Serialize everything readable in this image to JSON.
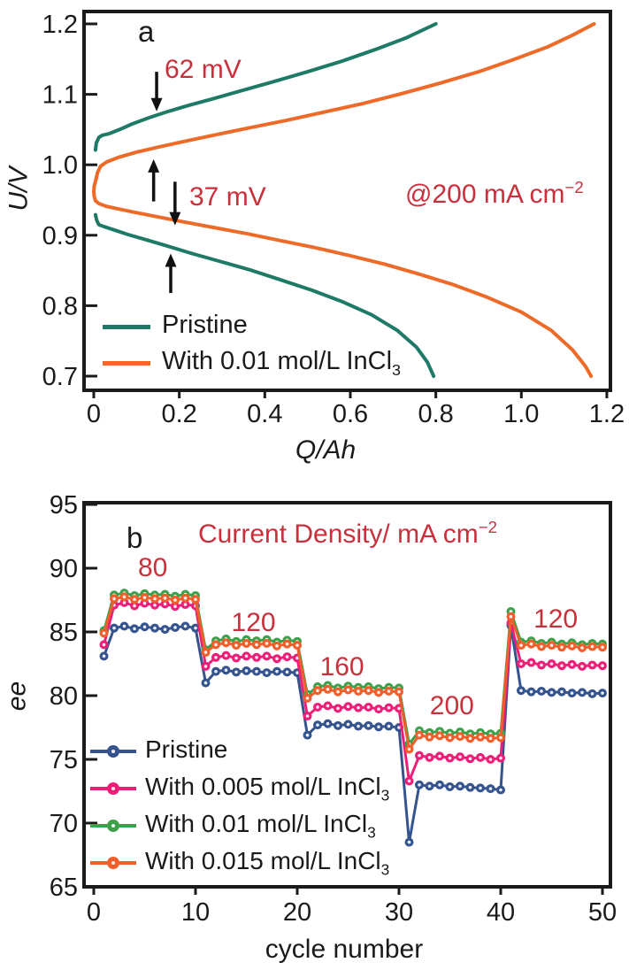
{
  "colors": {
    "axis": "#1a1a1a",
    "annotation_red": "#c9303c",
    "arrow_black": "#111111"
  },
  "chart_data": [
    {
      "panel": "a",
      "panel_label": "a",
      "type": "line",
      "xlabel": "Q/Ah",
      "ylabel": "U/V",
      "xlim": [
        0,
        1.2
      ],
      "ylim": [
        0.7,
        1.2
      ],
      "x_ticks": [
        "0",
        "0.2",
        "0.4",
        "0.6",
        "0.8",
        "1.0",
        "1.2"
      ],
      "y_ticks": [
        "0.7",
        "0.8",
        "0.9",
        "1.0",
        "1.1",
        "1.2"
      ],
      "grid": false,
      "legend_position": "lower-left-inside",
      "condition_main": "@200 mA cm",
      "condition_sup": "−2",
      "overpotentials": [
        {
          "label": "62 mV",
          "series": "Pristine"
        },
        {
          "label": "37 mV",
          "series": "With 0.01 mol/L InCl3"
        }
      ],
      "arrows": [
        {
          "x": 0.147,
          "from": 1.132,
          "to": 1.076
        },
        {
          "x": 0.14,
          "from": 0.948,
          "to": 1.008
        },
        {
          "x": 0.19,
          "from": 0.976,
          "to": 0.914
        },
        {
          "x": 0.18,
          "from": 0.818,
          "to": 0.874
        }
      ],
      "series": [
        {
          "name": "Pristine",
          "name_main": "Pristine",
          "name_sub": "",
          "color": "#1e7a67",
          "charge": [
            [
              0.004,
              1.021
            ],
            [
              0.006,
              1.031
            ],
            [
              0.012,
              1.039
            ],
            [
              0.02,
              1.042
            ],
            [
              0.035,
              1.044
            ],
            [
              0.06,
              1.05
            ],
            [
              0.09,
              1.058
            ],
            [
              0.13,
              1.067
            ],
            [
              0.17,
              1.075
            ],
            [
              0.22,
              1.084
            ],
            [
              0.28,
              1.094
            ],
            [
              0.35,
              1.106
            ],
            [
              0.42,
              1.118
            ],
            [
              0.5,
              1.132
            ],
            [
              0.58,
              1.147
            ],
            [
              0.66,
              1.164
            ],
            [
              0.73,
              1.18
            ],
            [
              0.8,
              1.2
            ]
          ],
          "discharge": [
            [
              0.004,
              0.929
            ],
            [
              0.007,
              0.921
            ],
            [
              0.012,
              0.915
            ],
            [
              0.025,
              0.912
            ],
            [
              0.05,
              0.907
            ],
            [
              0.08,
              0.901
            ],
            [
              0.12,
              0.894
            ],
            [
              0.17,
              0.885
            ],
            [
              0.23,
              0.874
            ],
            [
              0.3,
              0.862
            ],
            [
              0.37,
              0.85
            ],
            [
              0.44,
              0.836
            ],
            [
              0.51,
              0.822
            ],
            [
              0.58,
              0.806
            ],
            [
              0.65,
              0.787
            ],
            [
              0.71,
              0.765
            ],
            [
              0.755,
              0.741
            ],
            [
              0.78,
              0.72
            ],
            [
              0.795,
              0.7
            ]
          ]
        },
        {
          "name": "With 0.01 mol/L InCl3",
          "name_main": "With 0.01 mol/L InCl",
          "name_sub": "3",
          "color": "#ee6a28",
          "charge": [
            [
              0.004,
              0.976
            ],
            [
              0.009,
              0.989
            ],
            [
              0.016,
              0.998
            ],
            [
              0.03,
              1.004
            ],
            [
              0.06,
              1.011
            ],
            [
              0.1,
              1.018
            ],
            [
              0.15,
              1.025
            ],
            [
              0.21,
              1.033
            ],
            [
              0.28,
              1.042
            ],
            [
              0.36,
              1.052
            ],
            [
              0.45,
              1.063
            ],
            [
              0.54,
              1.075
            ],
            [
              0.63,
              1.087
            ],
            [
              0.72,
              1.101
            ],
            [
              0.81,
              1.116
            ],
            [
              0.9,
              1.132
            ],
            [
              0.98,
              1.149
            ],
            [
              1.06,
              1.167
            ],
            [
              1.12,
              1.184
            ],
            [
              1.17,
              1.2
            ]
          ],
          "nose": [
            [
              0.001,
              0.97
            ],
            [
              0.0,
              0.962
            ],
            [
              0.001,
              0.955
            ]
          ],
          "discharge": [
            [
              0.004,
              0.949
            ],
            [
              0.012,
              0.945
            ],
            [
              0.03,
              0.941
            ],
            [
              0.06,
              0.937
            ],
            [
              0.1,
              0.932
            ],
            [
              0.15,
              0.926
            ],
            [
              0.21,
              0.919
            ],
            [
              0.28,
              0.911
            ],
            [
              0.36,
              0.902
            ],
            [
              0.44,
              0.892
            ],
            [
              0.52,
              0.882
            ],
            [
              0.6,
              0.871
            ],
            [
              0.68,
              0.859
            ],
            [
              0.76,
              0.845
            ],
            [
              0.84,
              0.83
            ],
            [
              0.92,
              0.812
            ],
            [
              1.0,
              0.791
            ],
            [
              1.07,
              0.765
            ],
            [
              1.12,
              0.737
            ],
            [
              1.15,
              0.714
            ],
            [
              1.163,
              0.7
            ]
          ]
        }
      ]
    },
    {
      "panel": "b",
      "panel_label": "b",
      "type": "line",
      "title_main": "Current Density/ mA cm",
      "title_sup": "−2",
      "xlabel": "cycle number",
      "ylabel": "ee",
      "xlim": [
        0,
        50
      ],
      "ylim": [
        65,
        95
      ],
      "x_ticks": [
        "0",
        "10",
        "20",
        "30",
        "40",
        "50"
      ],
      "y_ticks": [
        "65",
        "70",
        "75",
        "80",
        "85",
        "90",
        "95"
      ],
      "grid": false,
      "legend_position": "lower-left-inside",
      "segment_labels": [
        {
          "text": "80",
          "x": 5.8,
          "y": 90.0
        },
        {
          "text": "120",
          "x": 15.7,
          "y": 85.7
        },
        {
          "text": "160",
          "x": 24.4,
          "y": 82.2
        },
        {
          "text": "200",
          "x": 35.2,
          "y": 79.2
        },
        {
          "text": "120",
          "x": 45.4,
          "y": 86.0
        }
      ],
      "x": [
        1,
        2,
        3,
        4,
        5,
        6,
        7,
        8,
        9,
        10,
        11,
        12,
        13,
        14,
        15,
        16,
        17,
        18,
        19,
        20,
        21,
        22,
        23,
        24,
        25,
        26,
        27,
        28,
        29,
        30,
        31,
        32,
        33,
        34,
        35,
        36,
        37,
        38,
        39,
        40,
        41,
        42,
        43,
        44,
        45,
        46,
        47,
        48,
        49,
        50
      ],
      "series": [
        {
          "name": "Pristine",
          "name_main": "Pristine",
          "name_sub": "",
          "color": "#35548e",
          "values": [
            83.1,
            85.3,
            85.45,
            85.25,
            85.4,
            85.3,
            85.2,
            85.35,
            85.45,
            85.3,
            81.0,
            81.9,
            82.0,
            81.85,
            81.95,
            81.9,
            81.8,
            81.9,
            81.85,
            81.8,
            76.9,
            77.7,
            77.8,
            77.65,
            77.75,
            77.6,
            77.65,
            77.55,
            77.6,
            77.5,
            68.5,
            73.0,
            72.9,
            73.0,
            72.85,
            72.9,
            72.8,
            72.75,
            72.7,
            72.6,
            85.5,
            80.4,
            80.3,
            80.35,
            80.25,
            80.3,
            80.2,
            80.25,
            80.15,
            80.2
          ]
        },
        {
          "name": "With 0.005 mol/L InCl3",
          "name_main": "With 0.005 mol/L InCl",
          "name_sub": "3",
          "color": "#ed1e78",
          "values": [
            84.0,
            87.1,
            87.3,
            87.05,
            87.25,
            87.1,
            87.2,
            87.0,
            87.15,
            87.05,
            82.3,
            83.0,
            83.15,
            82.95,
            83.1,
            83.0,
            83.1,
            82.9,
            83.05,
            82.95,
            78.4,
            79.1,
            79.2,
            79.0,
            79.15,
            79.05,
            79.1,
            78.95,
            79.05,
            79.0,
            73.3,
            75.3,
            75.15,
            75.25,
            75.1,
            75.2,
            75.05,
            75.15,
            75.0,
            75.1,
            85.7,
            82.5,
            82.6,
            82.4,
            82.5,
            82.35,
            82.45,
            82.3,
            82.4,
            82.35
          ]
        },
        {
          "name": "With 0.01 mol/L InCl3",
          "name_main": "With 0.01 mol/L InCl",
          "name_sub": "3",
          "color": "#3da04a",
          "values": [
            85.1,
            87.9,
            88.05,
            87.85,
            88.0,
            87.9,
            87.95,
            87.8,
            87.95,
            87.85,
            83.6,
            84.3,
            84.45,
            84.25,
            84.4,
            84.3,
            84.4,
            84.2,
            84.35,
            84.25,
            80.1,
            80.7,
            80.8,
            80.6,
            80.75,
            80.65,
            80.7,
            80.55,
            80.65,
            80.6,
            76.2,
            77.25,
            77.1,
            77.2,
            77.05,
            77.15,
            77.0,
            77.1,
            77.0,
            77.05,
            86.6,
            84.2,
            84.3,
            84.1,
            84.2,
            84.05,
            84.15,
            84.0,
            84.1,
            84.05
          ]
        },
        {
          "name": "With 0.015 mol/L InCl3",
          "name_main": "With 0.015 mol/L InCl",
          "name_sub": "3",
          "color": "#ef5e2b",
          "values": [
            84.9,
            87.6,
            87.75,
            87.55,
            87.7,
            87.6,
            87.65,
            87.5,
            87.65,
            87.55,
            83.4,
            84.0,
            84.15,
            83.95,
            84.1,
            84.0,
            84.1,
            83.9,
            84.05,
            83.95,
            79.8,
            80.4,
            80.5,
            80.3,
            80.45,
            80.35,
            80.4,
            80.25,
            80.35,
            80.3,
            75.8,
            76.9,
            76.75,
            76.85,
            76.7,
            76.8,
            76.65,
            76.75,
            76.65,
            76.7,
            86.2,
            83.95,
            84.05,
            83.85,
            83.95,
            83.8,
            83.9,
            83.75,
            83.85,
            83.8
          ]
        }
      ]
    }
  ]
}
